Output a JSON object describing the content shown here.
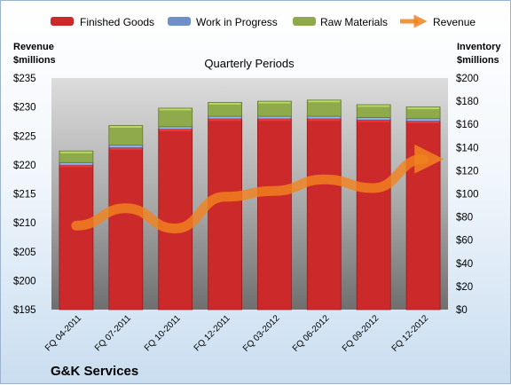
{
  "company": "G&K Services",
  "chart_data": {
    "type": "bar",
    "title": "Quarterly Periods",
    "categories": [
      "FQ 04-2011",
      "FQ 07-2011",
      "FQ 10-2011",
      "FQ 12-2011",
      "FQ 03-2012",
      "FQ 06-2012",
      "FQ 09-2012",
      "FQ 12-2012"
    ],
    "stacked": true,
    "left_axis": {
      "label_line1": "Revenue",
      "label_line2": "$millions",
      "ylim": [
        195,
        235
      ],
      "step": 5,
      "prefix": "$"
    },
    "right_axis": {
      "label_line1": "Inventory",
      "label_line2": "$millions",
      "ylim": [
        0,
        200
      ],
      "step": 20,
      "prefix": "$"
    },
    "series": [
      {
        "name": "Finished Goods",
        "axis": "right",
        "color": "#cc2a2a",
        "values": [
          125,
          140,
          156,
          165,
          165,
          165,
          164,
          163
        ]
      },
      {
        "name": "Work in Progress",
        "axis": "right",
        "color": "#6f8fc9",
        "values": [
          2,
          2,
          2,
          2,
          2,
          2,
          2,
          2
        ]
      },
      {
        "name": "Raw Materials",
        "axis": "right",
        "color": "#8faa4a",
        "values": [
          10,
          17,
          16,
          12,
          13,
          14,
          11,
          10
        ]
      },
      {
        "name": "Revenue",
        "axis": "left",
        "type": "line",
        "color": "#f0821e",
        "values": [
          209.5,
          212.5,
          209.0,
          214.5,
          215.5,
          217.5,
          216.0,
          221.0
        ]
      }
    ],
    "grid": false,
    "legend": "top"
  }
}
